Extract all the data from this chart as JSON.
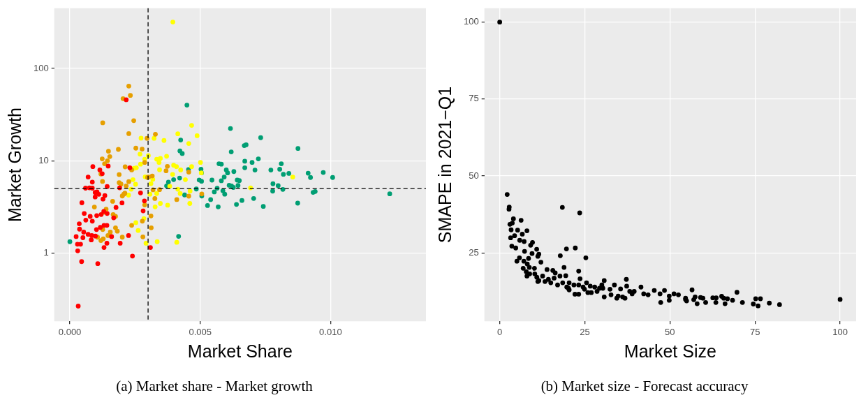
{
  "chart_data": [
    {
      "type": "scatter",
      "title": "(a) Market share - Market growth",
      "xlabel": "Market Share",
      "ylabel": "Market Growth",
      "log": "y",
      "xlim": [
        -0.0006,
        0.01366
      ],
      "ylim": [
        0.183,
        449
      ],
      "xticks": [
        {
          "value": 0,
          "label": "0.000"
        },
        {
          "value": 0.005,
          "label": "0.005"
        },
        {
          "value": 0.01,
          "label": "0.010"
        }
      ],
      "yticks": [
        1,
        10,
        100
      ],
      "grid": true,
      "legend": false,
      "marker": "circle",
      "ref_lines": [
        {
          "axis": "x",
          "value": 0.003,
          "line_style": "dashed",
          "color": "#000000"
        },
        {
          "axis": "y",
          "value": 5,
          "line_style": "dashed",
          "color": "#000000"
        }
      ],
      "series": [
        {
          "color": "#ff0000",
          "x": [
            0.00032,
            0.00045,
            0.00107,
            0.0003,
            0.00029,
            0.00041,
            0.00024,
            0.00037,
            0.00036,
            0.00055,
            0.00061,
            0.00078,
            0.00086,
            0.0007,
            0.00084,
            0.00098,
            0.00082,
            0.0005,
            0.00102,
            0.00117,
            0.00131,
            0.00142,
            0.00131,
            0.00142,
            0.0016,
            0.00193,
            0.00225,
            0.0024,
            0.00309,
            0.00103,
            0.0012,
            0.00143,
            0.0013,
            0.00168,
            0.00177,
            0.002,
            0.00046,
            0.00097,
            0.00111,
            0.00127,
            0.00134,
            0.00097,
            0.00104,
            0.0006,
            0.00075,
            0.00086,
            0.00143,
            0.00191,
            0.00086,
            0.0007,
            0.00115,
            0.00124,
            0.00088,
            0.00147,
            0.0023,
            0.00271,
            0.00286,
            0.00281,
            0.00216,
            0.00053
          ],
          "values": [
            0.267,
            0.81,
            0.77,
            1.06,
            1.25,
            1.25,
            1.51,
            1.82,
            2.08,
            2.69,
            2.28,
            2.5,
            2.22,
            1.6,
            1.55,
            1.53,
            1.39,
            1.47,
            1.8,
            1.9,
            2.0,
            2.0,
            1.15,
            1.28,
            1.51,
            1.28,
            1.55,
            0.93,
            1.15,
            2.55,
            2.62,
            2.69,
            2.83,
            2.41,
            3.12,
            3.5,
            3.51,
            4.06,
            4.34,
            3.85,
            4.2,
            4.54,
            4.6,
            5.06,
            5.1,
            5.06,
            5.27,
            5.1,
            5.88,
            6.67,
            7.97,
            7.25,
            8.65,
            8.77,
            8.4,
            4.49,
            3.68,
            2.87,
            45.8,
            1.69
          ]
        },
        {
          "color": "#e69f00",
          "x": [
            0.00226,
            0.00232,
            0.00204,
            0.00126,
            0.00245,
            0.00226,
            0.00328,
            0.00296,
            0.00186,
            0.00253,
            0.00277,
            0.00148,
            0.00153,
            0.00124,
            0.00144,
            0.00133,
            0.00287,
            0.00212,
            0.00237,
            0.00189,
            0.00119,
            0.00369,
            0.00374,
            0.00316,
            0.00302,
            0.00125,
            0.00226,
            0.00196,
            0.00216,
            0.00189,
            0.00298,
            0.00211,
            0.00201,
            0.00207,
            0.00164,
            0.00094,
            0.00139,
            0.00131,
            0.00166,
            0.00175,
            0.00319,
            0.00344,
            0.00326,
            0.00287,
            0.0041,
            0.00456,
            0.00456,
            0.00506,
            0.00311,
            0.00278,
            0.00312,
            0.0028,
            0.00237,
            0.00175,
            0.00182,
            0.00155,
            0.00146,
            0.00128,
            0.00119,
            0.00106,
            0.00201,
            0.00126
          ],
          "values": [
            64.4,
            51.1,
            47.1,
            25.8,
            27.2,
            19.7,
            19.4,
            17.5,
            13.3,
            13.7,
            13.4,
            12.7,
            11.1,
            10.5,
            10.0,
            9.3,
            9.6,
            8.6,
            7.97,
            7.1,
            7.2,
            7.8,
            8.7,
            6.85,
            6.67,
            5.98,
            5.95,
            5.6,
            5.35,
            5.8,
            6.6,
            4.46,
            4.16,
            4.35,
            3.64,
            3.16,
            2.99,
            2.77,
            2.62,
            2.5,
            4.85,
            4.87,
            3.9,
            3.33,
            3.8,
            7.55,
            4.14,
            4.38,
            2.53,
            2.22,
            1.88,
            1.5,
            2.0,
            1.88,
            1.73,
            1.69,
            1.55,
            1.43,
            1.37,
            1.49,
            1.49,
            1.8
          ]
        },
        {
          "color": "#ffff00",
          "x": [
            0.00395,
            0.00467,
            0.00414,
            0.00488,
            0.00273,
            0.00323,
            0.00361,
            0.00456,
            0.00269,
            0.00301,
            0.00371,
            0.00333,
            0.00347,
            0.00342,
            0.00271,
            0.00287,
            0.00255,
            0.00246,
            0.00398,
            0.00409,
            0.00425,
            0.00467,
            0.00501,
            0.00504,
            0.00344,
            0.00394,
            0.00289,
            0.00242,
            0.00252,
            0.00443,
            0.00311,
            0.00318,
            0.00383,
            0.00414,
            0.00423,
            0.00461,
            0.00235,
            0.00225,
            0.00307,
            0.00333,
            0.00327,
            0.00347,
            0.00375,
            0.0046,
            0.00284,
            0.00253,
            0.00262,
            0.00292,
            0.00335,
            0.0041,
            0.00693,
            0.00855
          ],
          "values": [
            318,
            24.2,
            19.6,
            18.7,
            17.6,
            17.5,
            16.6,
            15.4,
            11.8,
            11.4,
            11.2,
            10.4,
            10.6,
            9.6,
            9.2,
            10.4,
            8.4,
            8.3,
            8.95,
            8.65,
            7.97,
            8.65,
            9.6,
            7.4,
            8.0,
            7.12,
            6.7,
            6.25,
            5.57,
            6.25,
            5.66,
            6.3,
            5.3,
            4.92,
            4.42,
            4.7,
            4.92,
            4.25,
            4.35,
            4.42,
            3.17,
            3.45,
            3.31,
            3.45,
            2.37,
            2.14,
            1.76,
            1.28,
            1.33,
            1.31,
            5.1,
            6.67
          ]
        },
        {
          "color": "#009e73",
          "x": [
            0,
            0.00449,
            0.00616,
            0.00425,
            0.00422,
            0.00431,
            0.00619,
            0.00572,
            0.00581,
            0.006,
            0.00605,
            0.00629,
            0.00592,
            0.00581,
            0.00642,
            0.00545,
            0.00503,
            0.00505,
            0.00496,
            0.00505,
            0.00455,
            0.00421,
            0.00398,
            0.00378,
            0.00371,
            0.00485,
            0.00506,
            0.00565,
            0.00554,
            0.00594,
            0.00587,
            0.00611,
            0.0062,
            0.00645,
            0.00627,
            0.0044,
            0.0054,
            0.00528,
            0.00569,
            0.00639,
            0.00417,
            0.0066,
            0.0065,
            0.00732,
            0.00669,
            0.00676,
            0.00875,
            0.00671,
            0.00699,
            0.00723,
            0.00671,
            0.0071,
            0.00811,
            0.00771,
            0.00805,
            0.00819,
            0.0084,
            0.00914,
            0.00923,
            0.00972,
            0.01008,
            0.00779,
            0.00799,
            0.00778,
            0.00817,
            0.00933,
            0.00941,
            0.00705,
            0.00742,
            0.00874,
            0.01227
          ],
          "values": [
            1.33,
            40.1,
            22.4,
            16.8,
            12.8,
            12.0,
            12.5,
            9.3,
            9.2,
            7.97,
            7.4,
            7.65,
            6.67,
            6.08,
            6.18,
            6.18,
            8.1,
            7.4,
            6.2,
            6.0,
            8.05,
            6.5,
            6.25,
            5.88,
            5.35,
            4.95,
            4.16,
            5.05,
            4.6,
            4.35,
            4.73,
            5.43,
            5.35,
            5.4,
            5.15,
            4.27,
            3.8,
            3.28,
            3.17,
            3.37,
            1.52,
            3.72,
            6.1,
            17.8,
            14.6,
            14.9,
            13.6,
            9.9,
            9.6,
            10.5,
            8.4,
            7.95,
            9.3,
            7.95,
            8.1,
            7.15,
            7.3,
            7.35,
            6.6,
            7.47,
            6.6,
            5.64,
            5.38,
            4.7,
            4.9,
            4.55,
            4.65,
            3.91,
            3.21,
            3.48,
            4.39
          ]
        }
      ]
    },
    {
      "type": "scatter",
      "title": "(b) Market size - Forecast accuracy",
      "xlabel": "Market Size",
      "ylabel": "SMAPE in 2021−Q1",
      "xlim": [
        -4.5,
        104.7
      ],
      "ylim": [
        2.8,
        104.5
      ],
      "xticks": [
        0,
        25,
        50,
        75,
        100
      ],
      "yticks": [
        25,
        50,
        75,
        100
      ],
      "grid": true,
      "legend": false,
      "marker": "circle",
      "series": [
        {
          "color": "#000000",
          "x": [
            0,
            2.19,
            2.8,
            2.73,
            18.4,
            23.5,
            4.03,
            6.28,
            3.0,
            3.69,
            3.35,
            5.26,
            6.63,
            8.0,
            3.2,
            4.37,
            5.87,
            7.17,
            3.55,
            4.71,
            9.63,
            9.08,
            10.86,
            7.3,
            19.6,
            22.2,
            17.8,
            25.3,
            9.5,
            11.5,
            11.2,
            8.47,
            5.05,
            5.8,
            7.1,
            8.1,
            8.7,
            10.2,
            12.1,
            6.9,
            7.8,
            8.8,
            18.9,
            23.2,
            23.6,
            8.0,
            10.3,
            11.2,
            12.6,
            13.9,
            15.6,
            16.3,
            13.3,
            15.0,
            17.7,
            19.4,
            18.5,
            20.4,
            17.0,
            10.9,
            11.5,
            14.3,
            15.98,
            19.7,
            22.1,
            23.2,
            20.2,
            20.4,
            21.8,
            23.2,
            24.5,
            25.5,
            26.6,
            27.9,
            29.3,
            30.7,
            30.3,
            28.6,
            26.9,
            25.9,
            24.9,
            30.0,
            32.4,
            33.7,
            35.5,
            37.2,
            37.3,
            38.2,
            39.5,
            30.7,
            34.8,
            36.8,
            38.9,
            41.5,
            42.3,
            43.6,
            45.4,
            47.1,
            48.4,
            49.8,
            51.2,
            52.5,
            54.6,
            47.3,
            49.8,
            32.7,
            34.4,
            36.1,
            56.5,
            54.6,
            54.9,
            57.0,
            57.4,
            58.0,
            59.0,
            59.7,
            60.5,
            62.6,
            63.6,
            63.5,
            65.2,
            65.8,
            66.2,
            66.9,
            68.4,
            69.7,
            71.3,
            74.5,
            75.2,
            75.9,
            76.6,
            79.2,
            82.2,
            100
          ],
          "values": [
            100,
            44.0,
            39.9,
            39.2,
            39.8,
            38.0,
            36.1,
            35.6,
            34.3,
            34.7,
            32.5,
            32.4,
            31.1,
            32.2,
            29.9,
            30.6,
            29.1,
            28.7,
            27.2,
            26.6,
            28.4,
            27.5,
            26.2,
            25.5,
            26.3,
            26.6,
            24.1,
            23.4,
            24.8,
            24.6,
            23.9,
            23.2,
            22.3,
            23.4,
            22.3,
            21.4,
            20.3,
            20.0,
            22.0,
            20.0,
            18.9,
            18.2,
            20.3,
            19.1,
            16.6,
            17.5,
            18.2,
            15.7,
            17.5,
            19.6,
            19.3,
            18.5,
            15.7,
            15.3,
            17.5,
            17.6,
            15.3,
            15.3,
            14.6,
            17.1,
            16.0,
            16.4,
            16.8,
            13.9,
            11.6,
            11.6,
            13.5,
            13.0,
            14.6,
            14.6,
            13.9,
            15.3,
            14.2,
            13.9,
            13.5,
            16.0,
            13.5,
            12.5,
            12.1,
            12.1,
            13.2,
            14.6,
            13.2,
            14.6,
            13.3,
            16.4,
            14.2,
            12.5,
            12.5,
            10.7,
            11.0,
            10.3,
            11.7,
            13.9,
            11.7,
            11.4,
            12.8,
            11.7,
            12.8,
            11.0,
            11.7,
            11.4,
            9.9,
            8.9,
            9.6,
            11.4,
            10.3,
            10.7,
            13.0,
            10.3,
            9.4,
            9.8,
            10.7,
            8.5,
            10.5,
            10.3,
            8.9,
            10.4,
            10.4,
            8.9,
            10.9,
            10.3,
            8.5,
            10.1,
            9.6,
            12.2,
            8.9,
            8.4,
            10.1,
            7.8,
            10.1,
            8.7,
            8.2,
            9.9
          ]
        }
      ]
    }
  ]
}
